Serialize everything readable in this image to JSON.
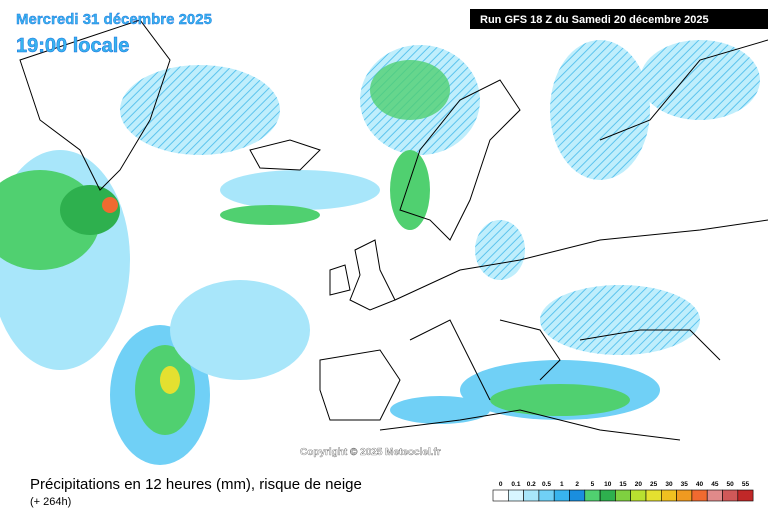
{
  "header": {
    "date": "Mercredi 31 décembre 2025",
    "time": "19:00 locale",
    "run": "Run GFS 18 Z du Samedi 20 décembre 2025"
  },
  "copyright": "Copyright © 2025 Meteociel.fr",
  "footer": {
    "title": "Précipitations en 12 heures (mm), risque de neige",
    "lead": "(+ 264h)"
  },
  "legend": {
    "levels": [
      0,
      0.1,
      0.2,
      0.5,
      1,
      2,
      5,
      10,
      15,
      20,
      25,
      30,
      35,
      40,
      45,
      50,
      55
    ],
    "colors": [
      "#ffffff",
      "#d8f6ff",
      "#a8e6fa",
      "#70d0f6",
      "#38b4ee",
      "#1a8ede",
      "#50d070",
      "#2eb04e",
      "#7fd040",
      "#b8e030",
      "#e4e030",
      "#f0c020",
      "#f09a20",
      "#f06a30",
      "#e08a8a",
      "#d05858",
      "#c02828"
    ]
  }
}
